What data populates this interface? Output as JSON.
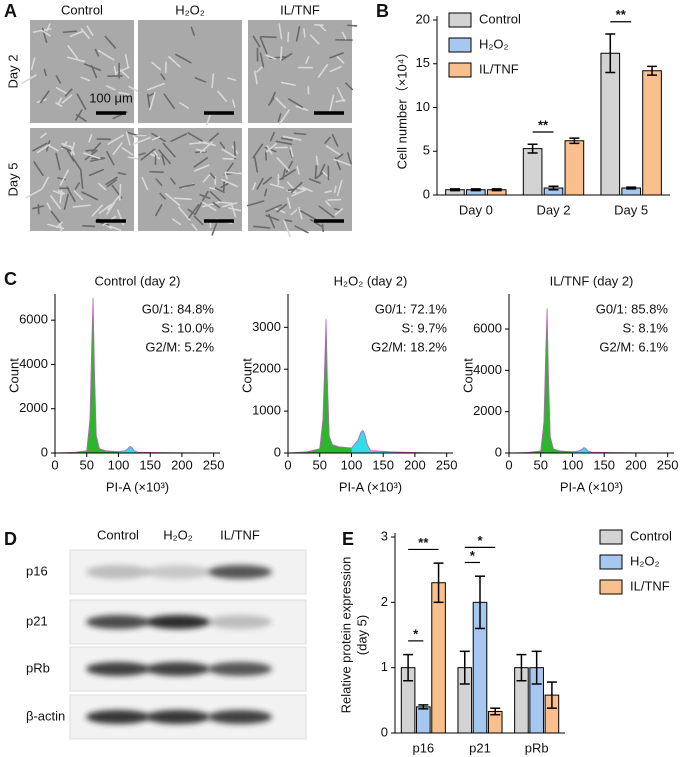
{
  "panel_letters": [
    "A",
    "B",
    "C",
    "D",
    "E"
  ],
  "micrographs": {
    "columns": [
      "Control",
      "H₂O₂",
      "IL/TNF"
    ],
    "rows": [
      "Day 2",
      "Day 5"
    ],
    "scale_bar": "100 μm"
  },
  "western_blot": {
    "columns": [
      "Control",
      "H₂O₂",
      "IL/TNF"
    ],
    "rows": [
      "p16",
      "p21",
      "pRb",
      "β-actin"
    ]
  },
  "chart_data": [
    {
      "type": "bar",
      "ylabel": "Cell number（×10⁴）",
      "categories": [
        "Day 0",
        "Day 2",
        "Day 5"
      ],
      "series": [
        {
          "name": "Control",
          "color": "#d3d3d3",
          "values": [
            0.6,
            5.3,
            16.2
          ],
          "errors": [
            0.1,
            0.5,
            2.2
          ]
        },
        {
          "name": "H₂O₂",
          "color": "#a6c8f0",
          "values": [
            0.6,
            0.8,
            0.8
          ],
          "errors": [
            0.1,
            0.2,
            0.1
          ]
        },
        {
          "name": "IL/TNF",
          "color": "#f9c08d",
          "values": [
            0.6,
            6.2,
            14.2
          ],
          "errors": [
            0.1,
            0.3,
            0.5
          ]
        }
      ],
      "ylim": [
        0,
        20
      ],
      "yticks": [
        0,
        5,
        10,
        15,
        20
      ],
      "legend": "upper left",
      "annotations": [
        {
          "text": "**",
          "category": "Day 2",
          "series": [
            "Control",
            "H₂O₂"
          ]
        },
        {
          "text": "**",
          "category": "Day 5",
          "series": [
            "Control",
            "H₂O₂"
          ]
        }
      ]
    },
    {
      "type": "area",
      "title": "Control (day 2)",
      "annotations": [
        "G0/1: 84.8%",
        "S: 10.0%",
        "G2/M: 5.2%"
      ],
      "xlabel": "PI-A (×10³)",
      "ylabel": "Count",
      "x": [
        0,
        30,
        50,
        55,
        58,
        60,
        62,
        65,
        70,
        80,
        100,
        110,
        115,
        118,
        121,
        125,
        130,
        160,
        200,
        260
      ],
      "series": [
        {
          "color": "#2db52d",
          "values": [
            0,
            30,
            100,
            1500,
            5000,
            7000,
            4000,
            800,
            200,
            100,
            60,
            null,
            null,
            null,
            null,
            null,
            null,
            null,
            null,
            null
          ]
        },
        {
          "color": "#33dde8",
          "values": [
            null,
            null,
            null,
            null,
            null,
            null,
            null,
            null,
            null,
            null,
            60,
            100,
            200,
            300,
            250,
            100,
            40,
            20,
            10,
            0
          ]
        }
      ],
      "xlim": [
        0,
        260
      ],
      "xticks": [
        0,
        50,
        100,
        150,
        200,
        250
      ],
      "ylim": [
        0,
        7000
      ],
      "yticks": [
        0,
        2000,
        4000,
        6000
      ]
    },
    {
      "type": "area",
      "title": "H₂O₂ (day 2)",
      "annotations": [
        "G0/1: 72.1%",
        "S: 9.7%",
        "G2/M: 18.2%"
      ],
      "xlabel": "PI-A (×10³)",
      "ylabel": "Count",
      "x": [
        0,
        30,
        50,
        55,
        58,
        60,
        62,
        65,
        70,
        80,
        100,
        110,
        115,
        118,
        121,
        125,
        130,
        160,
        200,
        260
      ],
      "series": [
        {
          "color": "#2db52d",
          "values": [
            0,
            30,
            100,
            800,
            2200,
            3200,
            1800,
            400,
            200,
            150,
            120,
            null,
            null,
            null,
            null,
            null,
            null,
            null,
            null,
            null
          ]
        },
        {
          "color": "#33dde8",
          "values": [
            null,
            null,
            null,
            null,
            null,
            null,
            null,
            null,
            null,
            null,
            120,
            300,
            500,
            540,
            450,
            200,
            60,
            30,
            10,
            0
          ]
        }
      ],
      "xlim": [
        0,
        260
      ],
      "xticks": [
        0,
        50,
        100,
        150,
        200,
        250
      ],
      "ylim": [
        0,
        3700
      ],
      "yticks": [
        0,
        1000,
        2000,
        3000
      ]
    },
    {
      "type": "area",
      "title": "IL/TNF (day 2)",
      "annotations": [
        "G0/1: 85.8%",
        "S: 8.1%",
        "G2/M: 6.1%"
      ],
      "xlabel": "PI-A (×10³)",
      "ylabel": "Count",
      "x": [
        0,
        30,
        50,
        55,
        58,
        60,
        62,
        65,
        70,
        80,
        100,
        110,
        115,
        118,
        121,
        125,
        130,
        160,
        200,
        260
      ],
      "series": [
        {
          "color": "#2db52d",
          "values": [
            0,
            30,
            100,
            1500,
            5000,
            7000,
            4000,
            800,
            200,
            100,
            60,
            null,
            null,
            null,
            null,
            null,
            null,
            null,
            null,
            null
          ]
        },
        {
          "color": "#33dde8",
          "values": [
            null,
            null,
            null,
            null,
            null,
            null,
            null,
            null,
            null,
            null,
            60,
            100,
            180,
            260,
            220,
            90,
            40,
            20,
            10,
            0
          ]
        }
      ],
      "xlim": [
        0,
        260
      ],
      "xticks": [
        0,
        50,
        100,
        150,
        200,
        250
      ],
      "ylim": [
        0,
        7500
      ],
      "yticks": [
        0,
        2000,
        4000,
        6000
      ]
    },
    {
      "type": "bar",
      "ylabel": "Relative protein expression",
      "ylabel2": "(day 5)",
      "categories": [
        "p16",
        "p21",
        "pRb"
      ],
      "series": [
        {
          "name": "Control",
          "color": "#d3d3d3",
          "values": [
            1.0,
            1.0,
            1.0
          ],
          "errors": [
            0.2,
            0.25,
            0.2
          ]
        },
        {
          "name": "H₂O₂",
          "color": "#a6c8f0",
          "values": [
            0.4,
            2.0,
            1.0
          ],
          "errors": [
            0.03,
            0.4,
            0.25
          ]
        },
        {
          "name": "IL/TNF",
          "color": "#f9c08d",
          "values": [
            2.3,
            0.33,
            0.58
          ],
          "errors": [
            0.3,
            0.05,
            0.2
          ]
        }
      ],
      "ylim": [
        0,
        3
      ],
      "yticks": [
        0,
        1,
        2,
        3
      ],
      "legend": "upper right",
      "annotations": [
        {
          "text": "*",
          "category": "p16",
          "series": [
            "Control",
            "H₂O₂"
          ]
        },
        {
          "text": "**",
          "category": "p16",
          "series": [
            "Control",
            "IL/TNF"
          ]
        },
        {
          "text": "*",
          "category": "p21",
          "series": [
            "Control",
            "H₂O₂"
          ]
        },
        {
          "text": "*",
          "category": "p21",
          "series": [
            "Control",
            "IL/TNF"
          ]
        }
      ]
    }
  ]
}
